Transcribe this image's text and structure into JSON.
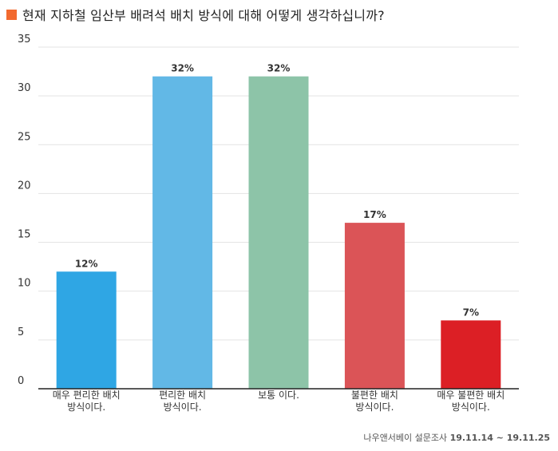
{
  "title": "현재 지하철 임산부 배려석 배치 방식에 대해 어떻게 생각하십니까?",
  "footer": {
    "source": "나우앤서베이 설문조사",
    "date": "19.11.14 ~ 19.11.25"
  },
  "colors": {
    "title_square": "#f26a2f"
  },
  "chart_data": {
    "type": "bar",
    "categories": [
      [
        "매우 편리한 배치",
        "방식이다."
      ],
      [
        "편리한 배치",
        "방식이다."
      ],
      [
        "보통 이다."
      ],
      [
        "불편한 배치",
        "방식이다."
      ],
      [
        "매우 불편한 배치",
        "방식이다."
      ]
    ],
    "values": [
      12,
      32,
      32,
      17,
      7
    ],
    "data_labels": [
      "12%",
      "32%",
      "32%",
      "17%",
      "7%"
    ],
    "colors": [
      "#2fa6e4",
      "#62b8e6",
      "#8dc4a8",
      "#db5457",
      "#dc1f25"
    ],
    "ylim": [
      0,
      35
    ],
    "yticks": [
      0,
      5,
      10,
      15,
      20,
      25,
      30,
      35
    ],
    "grid": true
  }
}
